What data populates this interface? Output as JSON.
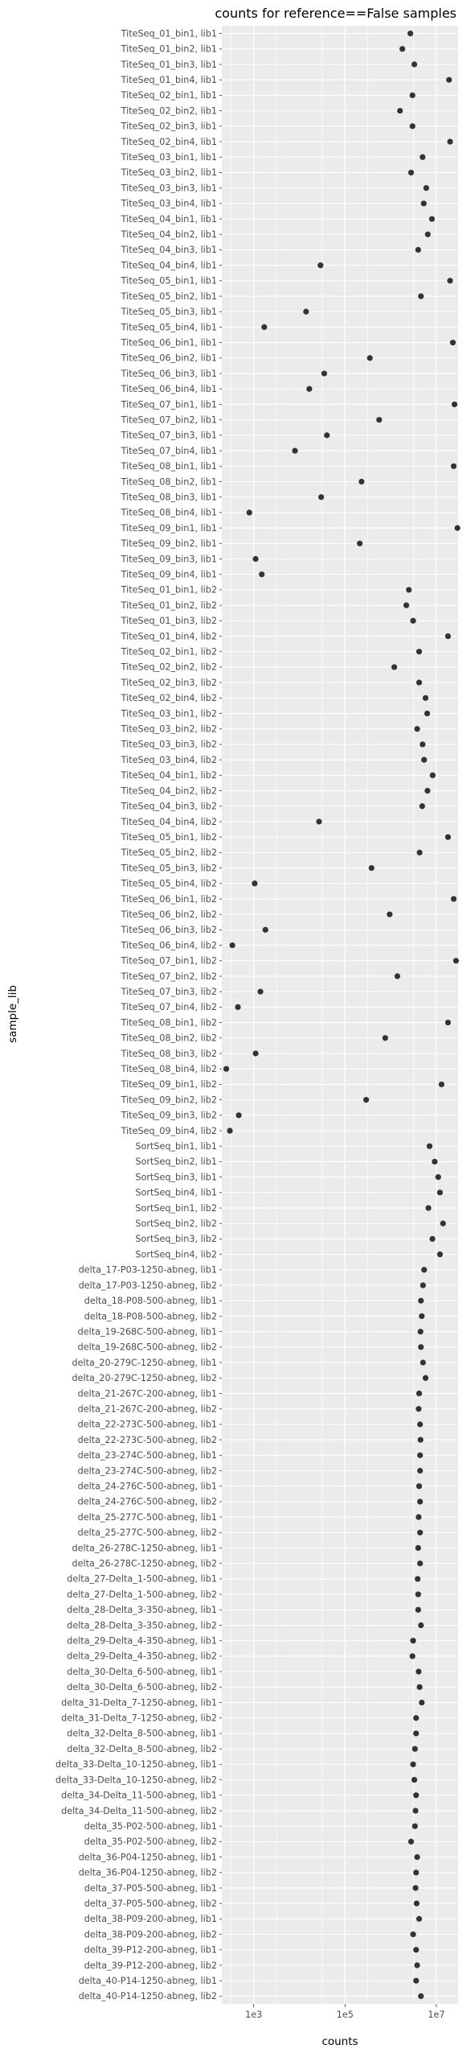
{
  "chart_data": {
    "type": "scatter",
    "title": "counts for reference==False samples",
    "xlabel": "counts",
    "ylabel": "sample_lib",
    "x_scale": "log10",
    "xlim": [
      200,
      30000000
    ],
    "x_ticks": [
      1000,
      100000,
      10000000
    ],
    "x_tick_labels": [
      "1e3",
      "1e5",
      "1e7"
    ],
    "grid": true,
    "legend": "none",
    "colors": {
      "panel": "#ebebeb",
      "grid": "#ffffff",
      "point": "#333333"
    },
    "categories": [
      "TiteSeq_01_bin1, lib1",
      "TiteSeq_01_bin2, lib1",
      "TiteSeq_01_bin3, lib1",
      "TiteSeq_01_bin4, lib1",
      "TiteSeq_02_bin1, lib1",
      "TiteSeq_02_bin2, lib1",
      "TiteSeq_02_bin3, lib1",
      "TiteSeq_02_bin4, lib1",
      "TiteSeq_03_bin1, lib1",
      "TiteSeq_03_bin2, lib1",
      "TiteSeq_03_bin3, lib1",
      "TiteSeq_03_bin4, lib1",
      "TiteSeq_04_bin1, lib1",
      "TiteSeq_04_bin2, lib1",
      "TiteSeq_04_bin3, lib1",
      "TiteSeq_04_bin4, lib1",
      "TiteSeq_05_bin1, lib1",
      "TiteSeq_05_bin2, lib1",
      "TiteSeq_05_bin3, lib1",
      "TiteSeq_05_bin4, lib1",
      "TiteSeq_06_bin1, lib1",
      "TiteSeq_06_bin2, lib1",
      "TiteSeq_06_bin3, lib1",
      "TiteSeq_06_bin4, lib1",
      "TiteSeq_07_bin1, lib1",
      "TiteSeq_07_bin2, lib1",
      "TiteSeq_07_bin3, lib1",
      "TiteSeq_07_bin4, lib1",
      "TiteSeq_08_bin1, lib1",
      "TiteSeq_08_bin2, lib1",
      "TiteSeq_08_bin3, lib1",
      "TiteSeq_08_bin4, lib1",
      "TiteSeq_09_bin1, lib1",
      "TiteSeq_09_bin2, lib1",
      "TiteSeq_09_bin3, lib1",
      "TiteSeq_09_bin4, lib1",
      "TiteSeq_01_bin1, lib2",
      "TiteSeq_01_bin2, lib2",
      "TiteSeq_01_bin3, lib2",
      "TiteSeq_01_bin4, lib2",
      "TiteSeq_02_bin1, lib2",
      "TiteSeq_02_bin2, lib2",
      "TiteSeq_02_bin3, lib2",
      "TiteSeq_02_bin4, lib2",
      "TiteSeq_03_bin1, lib2",
      "TiteSeq_03_bin2, lib2",
      "TiteSeq_03_bin3, lib2",
      "TiteSeq_03_bin4, lib2",
      "TiteSeq_04_bin1, lib2",
      "TiteSeq_04_bin2, lib2",
      "TiteSeq_04_bin3, lib2",
      "TiteSeq_04_bin4, lib2",
      "TiteSeq_05_bin1, lib2",
      "TiteSeq_05_bin2, lib2",
      "TiteSeq_05_bin3, lib2",
      "TiteSeq_05_bin4, lib2",
      "TiteSeq_06_bin1, lib2",
      "TiteSeq_06_bin2, lib2",
      "TiteSeq_06_bin3, lib2",
      "TiteSeq_06_bin4, lib2",
      "TiteSeq_07_bin1, lib2",
      "TiteSeq_07_bin2, lib2",
      "TiteSeq_07_bin3, lib2",
      "TiteSeq_07_bin4, lib2",
      "TiteSeq_08_bin1, lib2",
      "TiteSeq_08_bin2, lib2",
      "TiteSeq_08_bin3, lib2",
      "TiteSeq_08_bin4, lib2",
      "TiteSeq_09_bin1, lib2",
      "TiteSeq_09_bin2, lib2",
      "TiteSeq_09_bin3, lib2",
      "TiteSeq_09_bin4, lib2",
      "SortSeq_bin1, lib1",
      "SortSeq_bin2, lib1",
      "SortSeq_bin3, lib1",
      "SortSeq_bin4, lib1",
      "SortSeq_bin1, lib2",
      "SortSeq_bin2, lib2",
      "SortSeq_bin3, lib2",
      "SortSeq_bin4, lib2",
      "delta_17-P03-1250-abneg, lib1",
      "delta_17-P03-1250-abneg, lib2",
      "delta_18-P08-500-abneg, lib1",
      "delta_18-P08-500-abneg, lib2",
      "delta_19-268C-500-abneg, lib1",
      "delta_19-268C-500-abneg, lib2",
      "delta_20-279C-1250-abneg, lib1",
      "delta_20-279C-1250-abneg, lib2",
      "delta_21-267C-200-abneg, lib1",
      "delta_21-267C-200-abneg, lib2",
      "delta_22-273C-500-abneg, lib1",
      "delta_22-273C-500-abneg, lib2",
      "delta_23-274C-500-abneg, lib1",
      "delta_23-274C-500-abneg, lib2",
      "delta_24-276C-500-abneg, lib1",
      "delta_24-276C-500-abneg, lib2",
      "delta_25-277C-500-abneg, lib1",
      "delta_25-277C-500-abneg, lib2",
      "delta_26-278C-1250-abneg, lib1",
      "delta_26-278C-1250-abneg, lib2",
      "delta_27-Delta_1-500-abneg, lib1",
      "delta_27-Delta_1-500-abneg, lib2",
      "delta_28-Delta_3-350-abneg, lib1",
      "delta_28-Delta_3-350-abneg, lib2",
      "delta_29-Delta_4-350-abneg, lib1",
      "delta_29-Delta_4-350-abneg, lib2",
      "delta_30-Delta_6-500-abneg, lib1",
      "delta_30-Delta_6-500-abneg, lib2",
      "delta_31-Delta_7-1250-abneg, lib1",
      "delta_31-Delta_7-1250-abneg, lib2",
      "delta_32-Delta_8-500-abneg, lib1",
      "delta_32-Delta_8-500-abneg, lib2",
      "delta_33-Delta_10-1250-abneg, lib1",
      "delta_33-Delta_10-1250-abneg, lib2",
      "delta_34-Delta_11-500-abneg, lib1",
      "delta_34-Delta_11-500-abneg, lib2",
      "delta_35-P02-500-abneg, lib1",
      "delta_35-P02-500-abneg, lib2",
      "delta_36-P04-1250-abneg, lib1",
      "delta_36-P04-1250-abneg, lib2",
      "delta_37-P05-500-abneg, lib1",
      "delta_37-P05-500-abneg, lib2",
      "delta_38-P09-200-abneg, lib1",
      "delta_38-P09-200-abneg, lib2",
      "delta_39-P12-200-abneg, lib1",
      "delta_39-P12-200-abneg, lib2",
      "delta_40-P14-1250-abneg, lib1",
      "delta_40-P14-1250-abneg, lib2"
    ],
    "values": [
      2700000,
      1800000,
      3300000,
      19000000,
      3000000,
      1600000,
      3000000,
      20000000,
      5000000,
      2800000,
      6000000,
      5300000,
      8000000,
      6500000,
      4000000,
      29000,
      20000000,
      4600000,
      14000,
      1700,
      23000000,
      350000,
      35000,
      16500,
      25000000,
      560000,
      40000,
      8000,
      24000000,
      230000,
      30000,
      800,
      29000000,
      210000,
      1100,
      1500,
      2500000,
      2200000,
      3100000,
      18000000,
      4200000,
      1200000,
      4200000,
      5800000,
      6300000,
      3800000,
      5000000,
      5400000,
      8300000,
      6400000,
      4900000,
      27000,
      18000000,
      4300000,
      380000,
      1050,
      24000000,
      950000,
      1800,
      340,
      27000000,
      1400000,
      1400,
      450,
      18000000,
      760000,
      1100,
      250,
      13000000,
      290000,
      470,
      300,
      7100000,
      9200000,
      11000000,
      12000000,
      6700000,
      14000000,
      8200000,
      12000000,
      5400000,
      5100000,
      4600000,
      4800000,
      4500000,
      4600000,
      5100000,
      5800000,
      4200000,
      4100000,
      4400000,
      4500000,
      4400000,
      4400000,
      4200000,
      4400000,
      4100000,
      4400000,
      4000000,
      4400000,
      3900000,
      4000000,
      4000000,
      4600000,
      3100000,
      3000000,
      4100000,
      4300000,
      4800000,
      3600000,
      3600000,
      3400000,
      3100000,
      3300000,
      3600000,
      3500000,
      3400000,
      2800000,
      3800000,
      3600000,
      3500000,
      3700000,
      4200000,
      3100000,
      3600000,
      3800000,
      3600000,
      4600000
    ]
  }
}
